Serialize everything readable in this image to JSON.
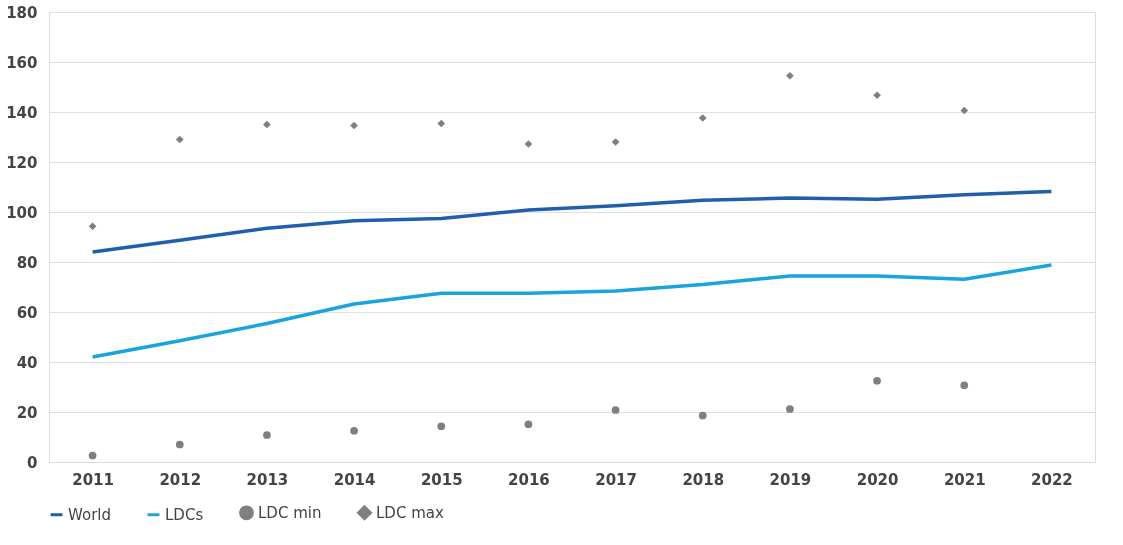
{
  "chart_data": {
    "type": "line",
    "categories": [
      "2011",
      "2012",
      "2013",
      "2014",
      "2015",
      "2016",
      "2017",
      "2018",
      "2019",
      "2020",
      "2021",
      "2022"
    ],
    "series": [
      {
        "name": "World",
        "color": "#1f5fae",
        "values": [
          84,
          88.7,
          93.5,
          96.5,
          97.4,
          100.8,
          102.5,
          104.7,
          105.6,
          105.1,
          106.9,
          108.2
        ]
      },
      {
        "name": "LDCs",
        "color": "#1aa3dd",
        "values": [
          42,
          48.5,
          55.4,
          63.2,
          67.5,
          67.5,
          68.4,
          71,
          74.4,
          74.4,
          73.1,
          78.8
        ]
      },
      {
        "name": "LDC min",
        "type": "scatter",
        "color": "#7f7f7f",
        "marker": "circle",
        "values": [
          2.6,
          7,
          10.8,
          12.5,
          14.3,
          15.1,
          20.8,
          18.6,
          21.2,
          32.5,
          30.7,
          null
        ]
      },
      {
        "name": "LDC max",
        "type": "scatter",
        "color": "#7f7f7f",
        "marker": "diamond",
        "values": [
          94.3,
          129,
          135,
          134.6,
          135.4,
          127.2,
          128,
          137.6,
          154.5,
          146.7,
          140.6,
          null
        ]
      }
    ],
    "ylim": [
      0,
      180
    ],
    "yticks": [
      0,
      20,
      40,
      60,
      80,
      100,
      120,
      140,
      160,
      180
    ],
    "grid": "y",
    "legend": "bottom"
  }
}
